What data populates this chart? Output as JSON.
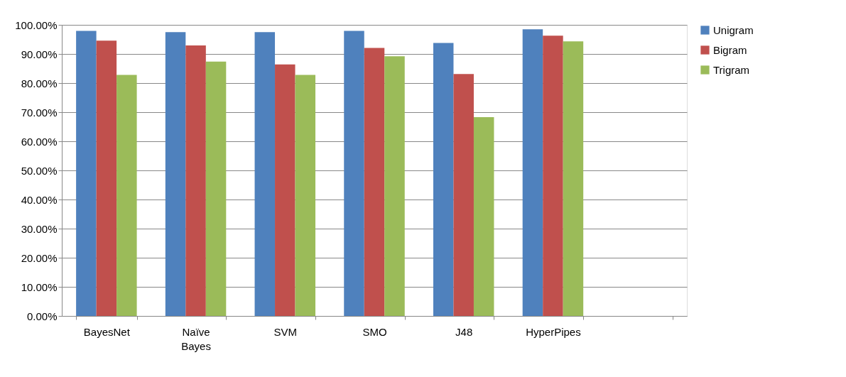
{
  "chart_data": {
    "type": "bar",
    "categories": [
      "BayesNet",
      "Naïve Bayes",
      "SVM",
      "SMO",
      "J48",
      "HyperPipes",
      null
    ],
    "series": [
      {
        "name": "Unigram",
        "color": "#4f81bd",
        "values": [
          97.9,
          97.5,
          97.5,
          97.9,
          93.8,
          98.5,
          null
        ]
      },
      {
        "name": "Bigram",
        "color": "#c0504d",
        "values": [
          94.6,
          92.9,
          86.4,
          92.1,
          83.1,
          96.3,
          null
        ]
      },
      {
        "name": "Trigram",
        "color": "#9bbb59",
        "values": [
          82.8,
          87.4,
          82.8,
          89.2,
          68.3,
          94.3,
          null
        ]
      }
    ],
    "ylim": [
      0,
      100
    ],
    "yticks": [
      {
        "value": 0,
        "label": "0.00%"
      },
      {
        "value": 10,
        "label": "10.00%"
      },
      {
        "value": 20,
        "label": "20.00%"
      },
      {
        "value": 30,
        "label": "30.00%"
      },
      {
        "value": 40,
        "label": "40.00%"
      },
      {
        "value": 50,
        "label": "50.00%"
      },
      {
        "value": 60,
        "label": "60.00%"
      },
      {
        "value": 70,
        "label": "70.00%"
      },
      {
        "value": 80,
        "label": "80.00%"
      },
      {
        "value": 90,
        "label": "90.00%"
      },
      {
        "value": 100,
        "label": "100.00%"
      }
    ],
    "grid": "y",
    "legend": "right"
  }
}
